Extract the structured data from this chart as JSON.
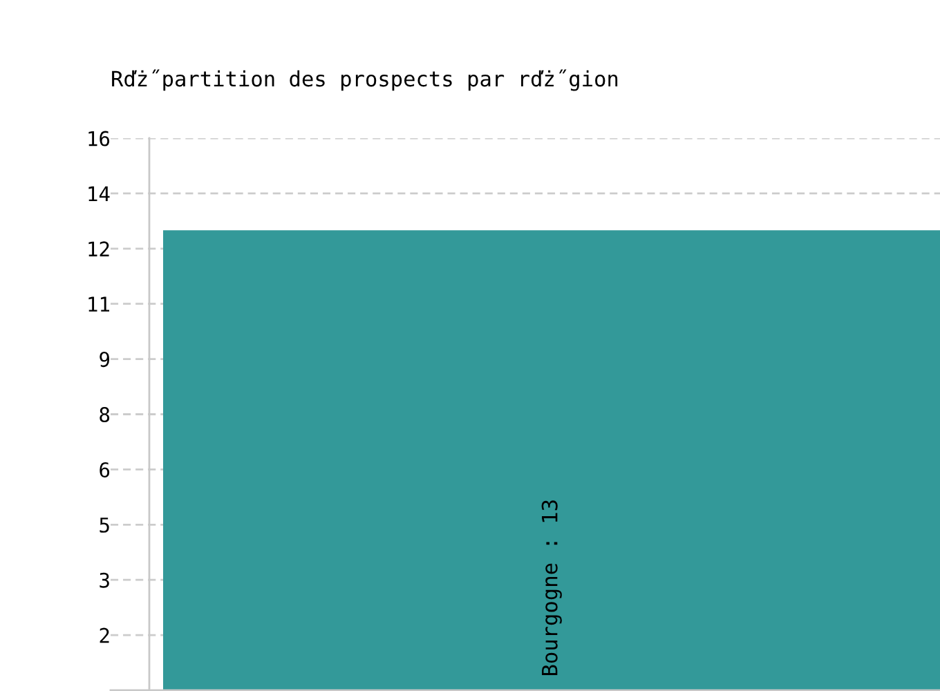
{
  "chart_data": {
    "type": "bar",
    "title": "Rďż˝partition des prospects par rďż˝gion",
    "categories": [
      null
    ],
    "values": [
      13
    ],
    "color": "#339999",
    "value_labels": [
      "Bourgogne : 13"
    ],
    "ylim": [
      0,
      15.6
    ],
    "yticks": [
      {
        "value": 1.56,
        "label": "2"
      },
      {
        "value": 3.12,
        "label": "3"
      },
      {
        "value": 4.68,
        "label": "5"
      },
      {
        "value": 6.24,
        "label": "6"
      },
      {
        "value": 7.8,
        "label": "8"
      },
      {
        "value": 9.36,
        "label": "9"
      },
      {
        "value": 10.92,
        "label": "11"
      },
      {
        "value": 12.48,
        "label": "12"
      },
      {
        "value": 14.04,
        "label": "14"
      },
      {
        "value": 15.6,
        "label": "16"
      }
    ],
    "grid": "y",
    "tick_labels": "y"
  }
}
